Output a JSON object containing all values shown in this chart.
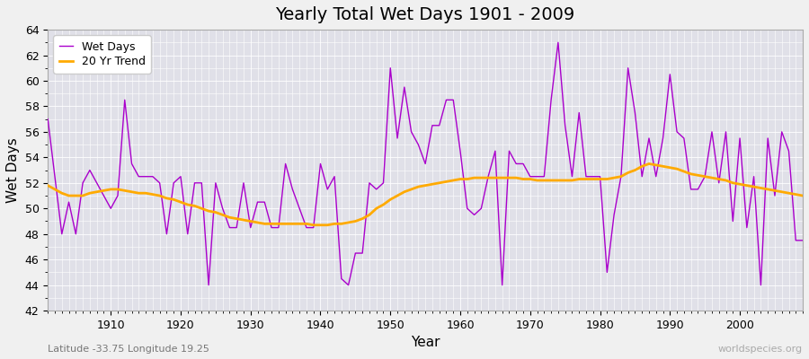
{
  "title": "Yearly Total Wet Days 1901 - 2009",
  "xlabel": "Year",
  "ylabel": "Wet Days",
  "subtitle_left": "Latitude -33.75 Longitude 19.25",
  "subtitle_right": "worldspecies.org",
  "fig_bg_color": "#f0f0f0",
  "plot_bg_color": "#e0e0e8",
  "grid_color": "#ffffff",
  "line_color": "#aa00cc",
  "trend_color": "#ffaa00",
  "ylim": [
    42,
    64
  ],
  "yticks": [
    42,
    44,
    46,
    48,
    50,
    52,
    54,
    56,
    58,
    60,
    62,
    64
  ],
  "xlim_start": 1901,
  "xlim_end": 2009,
  "years": [
    1901,
    1902,
    1903,
    1904,
    1905,
    1906,
    1907,
    1908,
    1909,
    1910,
    1911,
    1912,
    1913,
    1914,
    1915,
    1916,
    1917,
    1918,
    1919,
    1920,
    1921,
    1922,
    1923,
    1924,
    1925,
    1926,
    1927,
    1928,
    1929,
    1930,
    1931,
    1932,
    1933,
    1934,
    1935,
    1936,
    1937,
    1938,
    1939,
    1940,
    1941,
    1942,
    1943,
    1944,
    1945,
    1946,
    1947,
    1948,
    1949,
    1950,
    1951,
    1952,
    1953,
    1954,
    1955,
    1956,
    1957,
    1958,
    1959,
    1960,
    1961,
    1962,
    1963,
    1964,
    1965,
    1966,
    1967,
    1968,
    1969,
    1970,
    1971,
    1972,
    1973,
    1974,
    1975,
    1976,
    1977,
    1978,
    1979,
    1980,
    1981,
    1982,
    1983,
    1984,
    1985,
    1986,
    1987,
    1988,
    1989,
    1990,
    1991,
    1992,
    1993,
    1994,
    1995,
    1996,
    1997,
    1998,
    1999,
    2000,
    2001,
    2002,
    2003,
    2004,
    2005,
    2006,
    2007,
    2008,
    2009
  ],
  "wet_days": [
    57.0,
    52.5,
    48.0,
    50.5,
    48.0,
    52.0,
    53.0,
    52.0,
    51.0,
    50.0,
    51.0,
    58.5,
    53.5,
    52.5,
    52.5,
    52.5,
    52.0,
    48.0,
    52.0,
    52.5,
    48.0,
    52.0,
    52.0,
    44.0,
    52.0,
    50.0,
    48.5,
    48.5,
    52.0,
    48.5,
    50.5,
    50.5,
    48.5,
    48.5,
    53.5,
    51.5,
    50.0,
    48.5,
    48.5,
    53.5,
    51.5,
    52.5,
    44.5,
    44.0,
    46.5,
    46.5,
    52.0,
    51.5,
    52.0,
    61.0,
    55.5,
    59.5,
    56.0,
    55.0,
    53.5,
    56.5,
    56.5,
    58.5,
    58.5,
    54.5,
    50.0,
    49.5,
    50.0,
    52.5,
    54.5,
    44.0,
    54.5,
    53.5,
    53.5,
    52.5,
    52.5,
    52.5,
    58.5,
    63.0,
    56.5,
    52.5,
    57.5,
    52.5,
    52.5,
    52.5,
    45.0,
    49.5,
    52.5,
    61.0,
    57.5,
    52.5,
    55.5,
    52.5,
    55.5,
    60.5,
    56.0,
    55.5,
    51.5,
    51.5,
    52.5,
    56.0,
    52.0,
    56.0,
    49.0,
    55.5,
    48.5,
    52.5,
    44.0,
    55.5,
    51.0,
    56.0,
    54.5,
    47.5,
    47.5
  ],
  "trend_years": [
    1901,
    1902,
    1903,
    1904,
    1905,
    1906,
    1907,
    1908,
    1909,
    1910,
    1911,
    1912,
    1913,
    1914,
    1915,
    1916,
    1917,
    1918,
    1919,
    1920,
    1921,
    1922,
    1923,
    1924,
    1925,
    1926,
    1927,
    1928,
    1929,
    1930,
    1931,
    1932,
    1933,
    1934,
    1935,
    1936,
    1937,
    1938,
    1939,
    1940,
    1941,
    1942,
    1943,
    1944,
    1945,
    1946,
    1947,
    1948,
    1949,
    1950,
    1951,
    1952,
    1953,
    1954,
    1955,
    1956,
    1957,
    1958,
    1959,
    1960,
    1961,
    1962,
    1963,
    1964,
    1965,
    1966,
    1967,
    1968,
    1969,
    1970,
    1971,
    1972,
    1973,
    1974,
    1975,
    1976,
    1977,
    1978,
    1979,
    1980,
    1981,
    1982,
    1983,
    1984,
    1985,
    1986,
    1987,
    1988,
    1989,
    1990,
    1991,
    1992,
    1993,
    1994,
    1995,
    1996,
    1997,
    1998,
    1999,
    2000,
    2001,
    2002,
    2003,
    2004,
    2005,
    2006,
    2007,
    2008,
    2009
  ],
  "trend_values": [
    51.8,
    51.5,
    51.2,
    51.0,
    51.0,
    51.0,
    51.2,
    51.3,
    51.4,
    51.5,
    51.5,
    51.4,
    51.3,
    51.2,
    51.2,
    51.1,
    51.0,
    50.8,
    50.7,
    50.5,
    50.3,
    50.2,
    50.0,
    49.8,
    49.7,
    49.5,
    49.3,
    49.2,
    49.1,
    49.0,
    48.9,
    48.8,
    48.8,
    48.8,
    48.8,
    48.8,
    48.8,
    48.8,
    48.7,
    48.7,
    48.7,
    48.8,
    48.8,
    48.9,
    49.0,
    49.2,
    49.5,
    50.0,
    50.3,
    50.7,
    51.0,
    51.3,
    51.5,
    51.7,
    51.8,
    51.9,
    52.0,
    52.1,
    52.2,
    52.3,
    52.3,
    52.4,
    52.4,
    52.4,
    52.4,
    52.4,
    52.4,
    52.4,
    52.3,
    52.3,
    52.2,
    52.2,
    52.2,
    52.2,
    52.2,
    52.2,
    52.3,
    52.3,
    52.3,
    52.3,
    52.3,
    52.4,
    52.5,
    52.8,
    53.0,
    53.3,
    53.5,
    53.4,
    53.3,
    53.2,
    53.1,
    52.9,
    52.7,
    52.6,
    52.5,
    52.4,
    52.3,
    52.2,
    52.0,
    51.9,
    51.8,
    51.7,
    51.6,
    51.5,
    51.4,
    51.3,
    51.2,
    51.1,
    51.0
  ]
}
